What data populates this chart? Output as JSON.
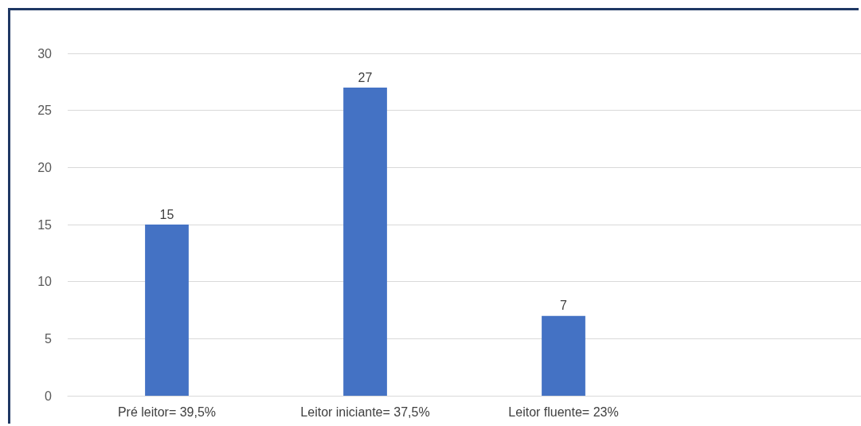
{
  "chart_data": {
    "type": "bar",
    "categories": [
      "Pré leitor= 39,5%",
      "Leitor iniciante= 37,5%",
      "Leitor fluente= 23%",
      null
    ],
    "values": [
      15,
      27,
      7,
      null
    ],
    "color": "#4472c4",
    "ylim": [
      0,
      30
    ],
    "yticks": [
      0,
      5,
      10,
      15,
      20,
      25,
      30
    ],
    "grid": "y",
    "data_labels": true
  }
}
